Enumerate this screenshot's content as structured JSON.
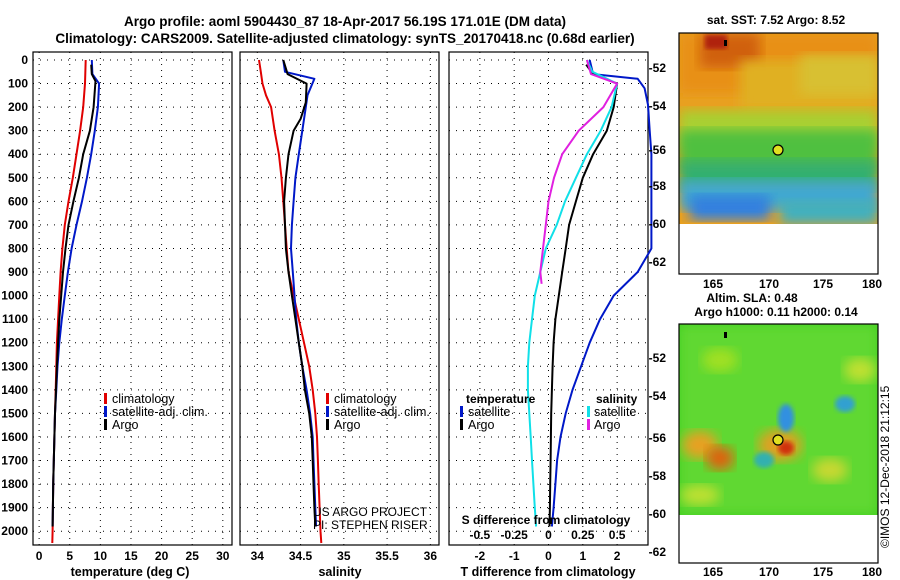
{
  "titles": {
    "line1": "Argo profile: aoml 5904430_87 18-Apr-2017 56.19S 171.01E (DM data)",
    "line2": "Climatology: CARS2009. Satellite-adjusted climatology: synTS_20170418.nc (0.68d earlier)"
  },
  "colors": {
    "climatology": "#e00000",
    "satellite": "#0018c8",
    "argo": "#000000",
    "sat_salinity": "#10e0e8",
    "argo_salinity": "#e020e0"
  },
  "chart_data": [
    {
      "type": "line",
      "id": "temperature",
      "xlabel": "temperature (deg C)",
      "xlim": [
        -1,
        31.5
      ],
      "xticks": [
        0,
        5,
        10,
        15,
        20,
        25,
        30
      ],
      "ylim": [
        2050,
        0
      ],
      "yticks": [
        0,
        100,
        200,
        300,
        400,
        500,
        600,
        700,
        800,
        900,
        1000,
        1100,
        1200,
        1300,
        1400,
        1500,
        1600,
        1700,
        1800,
        1900,
        2000
      ],
      "legend": [
        "climatology",
        "satellite-adj. clim.",
        "Argo"
      ],
      "series": [
        {
          "name": "climatology",
          "color": "#e00000",
          "points": [
            [
              7.6,
              0
            ],
            [
              7.5,
              100
            ],
            [
              7.2,
              200
            ],
            [
              6.7,
              300
            ],
            [
              6.1,
              400
            ],
            [
              5.5,
              500
            ],
            [
              4.8,
              600
            ],
            [
              4.2,
              700
            ],
            [
              3.8,
              800
            ],
            [
              3.5,
              900
            ],
            [
              3.3,
              1000
            ],
            [
              3.1,
              1100
            ],
            [
              2.9,
              1200
            ],
            [
              2.8,
              1300
            ],
            [
              2.7,
              1400
            ],
            [
              2.6,
              1500
            ],
            [
              2.5,
              1600
            ],
            [
              2.4,
              1700
            ],
            [
              2.3,
              1800
            ],
            [
              2.25,
              1900
            ],
            [
              2.2,
              2000
            ],
            [
              2.15,
              2050
            ]
          ]
        },
        {
          "name": "satellite-adj. clim.",
          "color": "#0018c8",
          "points": [
            [
              8.6,
              0
            ],
            [
              8.7,
              60
            ],
            [
              9.8,
              100
            ],
            [
              9.6,
              200
            ],
            [
              9.1,
              300
            ],
            [
              8.5,
              400
            ],
            [
              7.8,
              500
            ],
            [
              7.0,
              600
            ],
            [
              6.1,
              700
            ],
            [
              5.3,
              800
            ],
            [
              4.7,
              900
            ],
            [
              4.2,
              1000
            ],
            [
              3.7,
              1100
            ],
            [
              3.3,
              1200
            ],
            [
              3.0,
              1300
            ],
            [
              2.8,
              1400
            ],
            [
              2.6,
              1500
            ],
            [
              2.5,
              1600
            ],
            [
              2.4,
              1700
            ],
            [
              2.3,
              1800
            ],
            [
              2.25,
              1900
            ],
            [
              2.2,
              1980
            ]
          ]
        },
        {
          "name": "Argo",
          "color": "#000000",
          "points": [
            [
              8.5,
              20
            ],
            [
              8.6,
              60
            ],
            [
              9.2,
              90
            ],
            [
              8.9,
              200
            ],
            [
              8.3,
              300
            ],
            [
              7.2,
              400
            ],
            [
              6.5,
              500
            ],
            [
              5.6,
              600
            ],
            [
              4.8,
              700
            ],
            [
              4.3,
              800
            ],
            [
              3.9,
              900
            ],
            [
              3.6,
              1000
            ],
            [
              3.3,
              1100
            ],
            [
              3.1,
              1200
            ],
            [
              2.9,
              1300
            ],
            [
              2.75,
              1400
            ],
            [
              2.6,
              1500
            ],
            [
              2.5,
              1600
            ],
            [
              2.4,
              1700
            ],
            [
              2.3,
              1800
            ],
            [
              2.25,
              1900
            ],
            [
              2.2,
              1980
            ]
          ]
        }
      ]
    },
    {
      "type": "line",
      "id": "salinity",
      "xlabel": "salinity",
      "xlim": [
        33.8,
        36.1
      ],
      "xticks": [
        34,
        34.5,
        35,
        35.5,
        36
      ],
      "ylim": [
        2050,
        0
      ],
      "legend": [
        "climatology",
        "satellite-adj. clim.",
        "Argo"
      ],
      "credits": [
        "US ARGO PROJECT",
        "PI: STEPHEN RISER"
      ],
      "series": [
        {
          "name": "climatology",
          "color": "#e00000",
          "points": [
            [
              34.02,
              0
            ],
            [
              34.04,
              50
            ],
            [
              34.06,
              100
            ],
            [
              34.1,
              150
            ],
            [
              34.16,
              200
            ],
            [
              34.2,
              300
            ],
            [
              34.25,
              400
            ],
            [
              34.28,
              500
            ],
            [
              34.3,
              600
            ],
            [
              34.32,
              700
            ],
            [
              34.34,
              800
            ],
            [
              34.36,
              900
            ],
            [
              34.42,
              1000
            ],
            [
              34.48,
              1100
            ],
            [
              34.54,
              1200
            ],
            [
              34.6,
              1300
            ],
            [
              34.64,
              1400
            ],
            [
              34.67,
              1500
            ],
            [
              34.69,
              1600
            ],
            [
              34.7,
              1700
            ],
            [
              34.71,
              1800
            ],
            [
              34.72,
              1900
            ],
            [
              34.73,
              2000
            ],
            [
              34.74,
              2050
            ]
          ]
        },
        {
          "name": "satellite-adj. clim.",
          "color": "#0018c8",
          "points": [
            [
              34.3,
              0
            ],
            [
              34.32,
              50
            ],
            [
              34.66,
              80
            ],
            [
              34.58,
              150
            ],
            [
              34.56,
              200
            ],
            [
              34.52,
              300
            ],
            [
              34.48,
              400
            ],
            [
              34.44,
              500
            ],
            [
              34.42,
              600
            ],
            [
              34.4,
              700
            ],
            [
              34.39,
              800
            ],
            [
              34.41,
              900
            ],
            [
              34.43,
              1000
            ],
            [
              34.45,
              1100
            ],
            [
              34.48,
              1200
            ],
            [
              34.52,
              1300
            ],
            [
              34.57,
              1400
            ],
            [
              34.61,
              1500
            ],
            [
              34.64,
              1600
            ],
            [
              34.65,
              1700
            ],
            [
              34.66,
              1800
            ],
            [
              34.67,
              1900
            ],
            [
              34.68,
              1980
            ]
          ]
        },
        {
          "name": "Argo",
          "color": "#000000",
          "points": [
            [
              34.3,
              0
            ],
            [
              34.35,
              60
            ],
            [
              34.57,
              100
            ],
            [
              34.56,
              180
            ],
            [
              34.5,
              250
            ],
            [
              34.42,
              300
            ],
            [
              34.36,
              400
            ],
            [
              34.33,
              500
            ],
            [
              34.31,
              600
            ],
            [
              34.32,
              700
            ],
            [
              34.33,
              800
            ],
            [
              34.36,
              900
            ],
            [
              34.4,
              1000
            ],
            [
              34.44,
              1100
            ],
            [
              34.48,
              1200
            ],
            [
              34.52,
              1300
            ],
            [
              34.55,
              1400
            ],
            [
              34.6,
              1500
            ],
            [
              34.63,
              1600
            ],
            [
              34.64,
              1700
            ],
            [
              34.65,
              1800
            ],
            [
              34.66,
              1900
            ],
            [
              34.67,
              1980
            ]
          ]
        }
      ]
    },
    {
      "type": "line",
      "id": "difference",
      "xlabel": "T difference from climatology",
      "xlim": [
        -2.9,
        2.9
      ],
      "xticks": [
        -2,
        -1,
        0,
        1,
        2
      ],
      "second_axis_label": "S difference from climatology",
      "second_axis_ticks": [
        "-0.5",
        "-0.25",
        "0",
        "0.25",
        "0.5"
      ],
      "ylim": [
        2050,
        0
      ],
      "legend_left_title": "temperature",
      "legend_left": [
        "satellite",
        "Argo"
      ],
      "legend_right_title": "salinity",
      "legend_right": [
        "satellite",
        "Argo"
      ],
      "series": [
        {
          "name": "T satellite",
          "color": "#0018c8",
          "points": [
            [
              1.2,
              0
            ],
            [
              1.3,
              60
            ],
            [
              2.6,
              80
            ],
            [
              2.8,
              120
            ],
            [
              2.9,
              190
            ],
            [
              2.95,
              300
            ],
            [
              3.0,
              400
            ],
            [
              3.0,
              800
            ],
            [
              2.6,
              900
            ],
            [
              1.9,
              1000
            ],
            [
              1.5,
              1100
            ],
            [
              1.2,
              1200
            ],
            [
              0.95,
              1300
            ],
            [
              0.7,
              1400
            ],
            [
              0.5,
              1500
            ],
            [
              0.35,
              1600
            ],
            [
              0.25,
              1700
            ],
            [
              0.2,
              1800
            ],
            [
              0.15,
              1900
            ],
            [
              0.1,
              1980
            ]
          ]
        },
        {
          "name": "T Argo",
          "color": "#000000",
          "points": [
            [
              1.1,
              20
            ],
            [
              1.3,
              60
            ],
            [
              2.0,
              100
            ],
            [
              1.9,
              200
            ],
            [
              1.7,
              300
            ],
            [
              1.3,
              400
            ],
            [
              1.0,
              500
            ],
            [
              0.8,
              600
            ],
            [
              0.6,
              700
            ],
            [
              0.5,
              800
            ],
            [
              0.4,
              900
            ],
            [
              0.3,
              1000
            ],
            [
              0.2,
              1100
            ],
            [
              0.15,
              1200
            ],
            [
              0.12,
              1300
            ],
            [
              0.1,
              1400
            ],
            [
              0.08,
              1500
            ],
            [
              0.07,
              1600
            ],
            [
              0.06,
              1700
            ],
            [
              0.05,
              1800
            ],
            [
              0.04,
              1900
            ],
            [
              0.03,
              1980
            ]
          ]
        },
        {
          "name": "S satellite",
          "color": "#10e0e8",
          "points": [
            [
              0.28,
              0
            ],
            [
              0.32,
              50
            ],
            [
              0.5,
              100
            ],
            [
              0.46,
              200
            ],
            [
              0.38,
              300
            ],
            [
              0.28,
              400
            ],
            [
              0.2,
              500
            ],
            [
              0.12,
              600
            ],
            [
              0.06,
              700
            ],
            [
              -0.02,
              800
            ],
            [
              -0.06,
              900
            ],
            [
              -0.1,
              1000
            ],
            [
              -0.12,
              1100
            ],
            [
              -0.14,
              1200
            ],
            [
              -0.15,
              1300
            ],
            [
              -0.15,
              1400
            ],
            [
              -0.14,
              1500
            ],
            [
              -0.13,
              1600
            ],
            [
              -0.12,
              1700
            ],
            [
              -0.11,
              1800
            ],
            [
              -0.1,
              1900
            ],
            [
              -0.09,
              1980
            ]
          ]
        },
        {
          "name": "S Argo",
          "color": "#e020e0",
          "points": [
            [
              0.28,
              0
            ],
            [
              0.31,
              60
            ],
            [
              0.5,
              100
            ],
            [
              0.4,
              200
            ],
            [
              0.22,
              300
            ],
            [
              0.1,
              400
            ],
            [
              0.04,
              500
            ],
            [
              0.0,
              600
            ],
            [
              -0.02,
              700
            ],
            [
              -0.04,
              800
            ],
            [
              -0.06,
              900
            ],
            [
              -0.05,
              950
            ]
          ]
        }
      ]
    }
  ],
  "maps": {
    "sst": {
      "title": "sat. SST: 7.52 Argo: 8.52",
      "yticks": [
        "-52",
        "-54",
        "-56",
        "-58",
        "-60",
        "-62"
      ],
      "xticks": [
        "165",
        "170",
        "175",
        "180"
      ]
    },
    "sla": {
      "title1": "Altim. SLA: 0.48",
      "title2": "Argo h1000: 0.11 h2000: 0.14",
      "yticks": [
        "-52",
        "-54",
        "-56",
        "-58",
        "-60",
        "-62"
      ],
      "xticks": [
        "165",
        "170",
        "175",
        "180"
      ]
    },
    "credit": "©IMOS 12-Dec-2018 21:12:15"
  }
}
